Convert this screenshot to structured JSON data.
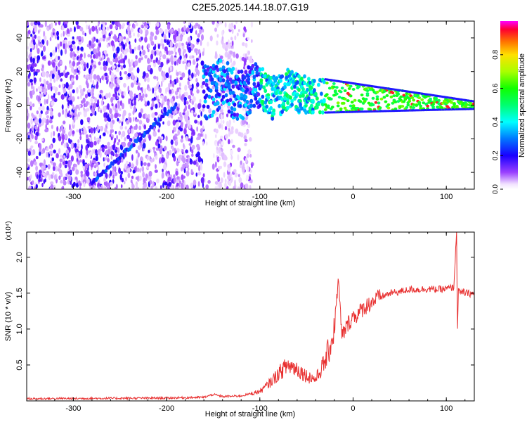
{
  "figure": {
    "title": "C2E5.2025.144.18.07.G19"
  },
  "chart_data": [
    {
      "type": "heatmap",
      "xlabel": "Height of straight line (km)",
      "ylabel": "Frequency (Hz)",
      "xlim": [
        -350,
        130
      ],
      "ylim": [
        -50,
        50
      ],
      "xticks": [
        -300,
        -200,
        -100,
        0,
        100
      ],
      "yticks": [
        -40,
        -20,
        0,
        20,
        40
      ],
      "colorbar": {
        "label": "Normalized spectral amplitude",
        "range": [
          0,
          1
        ],
        "ticks": [
          "0.0",
          "0.2",
          "0.4",
          "0.6",
          "0.8"
        ]
      },
      "features": {
        "diagonal_trace_x": [
          -280,
          -190
        ],
        "diagonal_trace_y": [
          -46,
          0
        ],
        "converging_band_x": [
          -160,
          130
        ],
        "converging_band_y_center": [
          10,
          0
        ],
        "noise_cutoff_x": -108
      }
    },
    {
      "type": "line",
      "xlabel": "Height of straight line (km)",
      "ylabel": "SNR (10 * v/v)",
      "multiplier": "(x10⁴)",
      "xlim": [
        -350,
        130
      ],
      "ylim": [
        0,
        2.35
      ],
      "xticks": [
        -300,
        -200,
        -100,
        0,
        100
      ],
      "yticks": [
        "0.5",
        "1.0",
        "1.5",
        "2.0"
      ],
      "series": [
        {
          "color": "#e83030",
          "x": [
            -350,
            -200,
            -160,
            -150,
            -140,
            -120,
            -100,
            -90,
            -80,
            -70,
            -60,
            -50,
            -40,
            -30,
            -25,
            -20,
            -16,
            -12,
            -5,
            0,
            5,
            10,
            20,
            30,
            40,
            50,
            60,
            70,
            80,
            90,
            100,
            108,
            111,
            112,
            113,
            115,
            118,
            120,
            130
          ],
          "y": [
            0.03,
            0.04,
            0.05,
            0.09,
            0.06,
            0.07,
            0.13,
            0.24,
            0.38,
            0.5,
            0.45,
            0.35,
            0.3,
            0.55,
            0.75,
            1.0,
            1.7,
            0.9,
            1.08,
            1.18,
            1.2,
            1.28,
            1.38,
            1.45,
            1.5,
            1.52,
            1.55,
            1.55,
            1.56,
            1.55,
            1.56,
            1.58,
            2.35,
            0.98,
            1.6,
            1.48,
            1.52,
            1.5,
            1.49
          ]
        }
      ]
    }
  ]
}
